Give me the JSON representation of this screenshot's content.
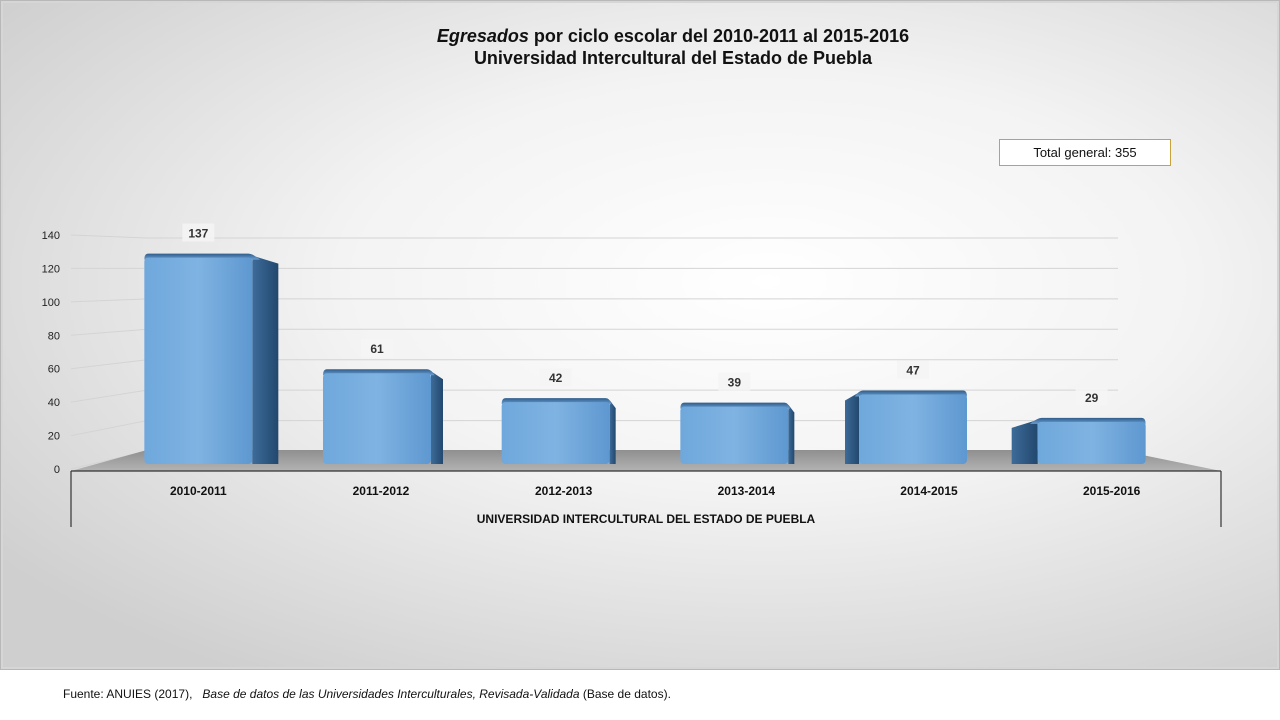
{
  "chart_data": {
    "type": "bar",
    "title_italic": "Egresados",
    "title_rest": " por ciclo escolar del 2010-2011 al 2015-2016",
    "subtitle": "Universidad Intercultural del Estado de Puebla",
    "categories": [
      "2010-2011",
      "2011-2012",
      "2012-2013",
      "2013-2014",
      "2014-2015",
      "2015-2016"
    ],
    "values": [
      137,
      61,
      42,
      39,
      47,
      29
    ],
    "data_labels": [
      "137",
      "61",
      "42",
      "39",
      "47",
      "29"
    ],
    "y_ticks": [
      "0",
      "20",
      "40",
      "60",
      "80",
      "100",
      "120",
      "140"
    ],
    "ylim": [
      0,
      140
    ],
    "x_group_label": "UNIVERSIDAD INTERCULTURAL DEL ESTADO DE PUEBLA",
    "annotation": "Total general: 355",
    "grid": true,
    "bar_color": "#5b9bd5",
    "bar_style": "3d-rounded"
  },
  "source": {
    "prefix": "Fuente: ANUIES (2017),",
    "italic": "Base de datos de las Universidades  Interculturales, Revisada-Validada",
    "suffix": " (Base de datos)."
  }
}
